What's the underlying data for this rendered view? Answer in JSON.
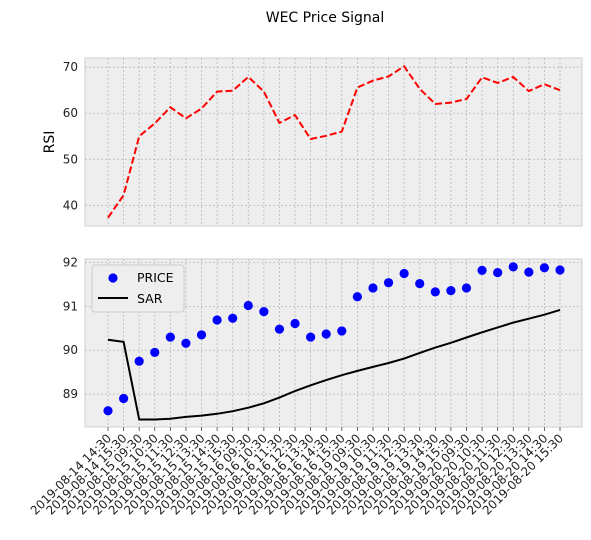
{
  "chart_data": {
    "title": "WEC Price Signal",
    "x": [
      "2019-08-14 14:30",
      "2019-08-14 15:30",
      "2019-08-15 09:30",
      "2019-08-15 10:30",
      "2019-08-15 11:30",
      "2019-08-15 12:30",
      "2019-08-15 13:30",
      "2019-08-15 14:30",
      "2019-08-15 15:30",
      "2019-08-16 09:30",
      "2019-08-16 10:30",
      "2019-08-16 11:30",
      "2019-08-16 12:30",
      "2019-08-16 13:30",
      "2019-08-16 14:30",
      "2019-08-16 15:30",
      "2019-08-19 09:30",
      "2019-08-19 10:30",
      "2019-08-19 11:30",
      "2019-08-19 12:30",
      "2019-08-19 13:30",
      "2019-08-19 14:30",
      "2019-08-19 15:30",
      "2019-08-20 09:30",
      "2019-08-20 10:30",
      "2019-08-20 11:30",
      "2019-08-20 12:30",
      "2019-08-20 13:30",
      "2019-08-20 14:30",
      "2019-08-20 15:30"
    ],
    "panels": [
      {
        "type": "line",
        "ylabel": "RSI",
        "ylim": [
          35.5,
          72
        ],
        "yticks": [
          40,
          50,
          60,
          70
        ],
        "grid": true,
        "series": [
          {
            "name": "",
            "color": "#ff0000",
            "style": "dashed",
            "values": [
              37.3,
              42.2,
              55.0,
              57.8,
              61.3,
              58.9,
              61.0,
              64.7,
              64.9,
              67.9,
              64.7,
              57.9,
              59.6,
              54.4,
              55.1,
              56.0,
              65.6,
              67.1,
              68.0,
              70.2,
              65.3,
              62.0,
              62.3,
              63.1,
              67.8,
              66.6,
              67.9,
              64.8,
              66.3,
              65.0
            ]
          }
        ]
      },
      {
        "type": "scatter+line",
        "ylabel": "",
        "ylim": [
          88.25,
          92.08
        ],
        "yticks": [
          89,
          90,
          91,
          92
        ],
        "grid": true,
        "legend": "top-left",
        "series": [
          {
            "name": "PRICE",
            "type": "scatter",
            "color": "#0000ff",
            "values": [
              88.62,
              88.9,
              89.75,
              89.95,
              90.3,
              90.16,
              90.35,
              90.69,
              90.73,
              91.02,
              90.88,
              90.48,
              90.61,
              90.3,
              90.37,
              90.44,
              91.22,
              91.42,
              91.54,
              91.75,
              91.52,
              91.33,
              91.36,
              91.42,
              91.82,
              91.77,
              91.9,
              91.78,
              91.88,
              91.83
            ]
          },
          {
            "name": "SAR",
            "type": "line",
            "color": "#000000",
            "values": [
              90.24,
              90.19,
              88.42,
              88.42,
              88.44,
              88.48,
              88.51,
              88.55,
              88.61,
              88.69,
              88.79,
              88.92,
              89.07,
              89.2,
              89.32,
              89.43,
              89.53,
              89.62,
              89.71,
              89.81,
              89.94,
              90.06,
              90.17,
              90.29,
              90.41,
              90.52,
              90.63,
              90.72,
              90.81,
              90.92
            ]
          }
        ]
      }
    ]
  }
}
